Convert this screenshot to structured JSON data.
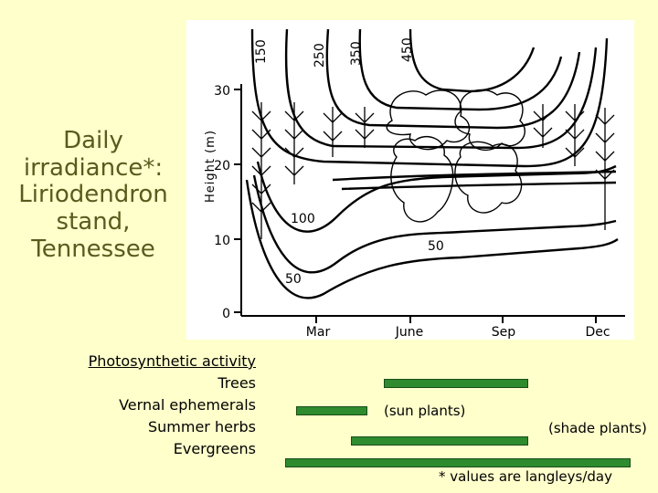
{
  "title": {
    "lines": [
      "Daily",
      "irradiance*:",
      "Liriodendron",
      "stand,",
      "Tennessee"
    ]
  },
  "figure": {
    "y_axis_label": "Height (m)",
    "y_ticks": [
      "0",
      "10",
      "20",
      "30"
    ],
    "x_ticks": [
      "Mar",
      "June",
      "Sep",
      "Dec"
    ],
    "top_contour_labels": [
      "150",
      "250",
      "350",
      "450"
    ],
    "inner_contour_labels": [
      "100",
      "50",
      "50"
    ]
  },
  "legend": {
    "heading": "Photosynthetic activity",
    "rows": [
      "Trees",
      "Vernal ephemerals",
      "Summer herbs",
      "Evergreens"
    ]
  },
  "notes": {
    "sun": "(sun plants)",
    "shade": "(shade plants)"
  },
  "footnote": "* values are langleys/day",
  "colors": {
    "background": "#ffffcc",
    "title_text": "#5a5a1e",
    "bar_fill": "#2e8b2e"
  }
}
